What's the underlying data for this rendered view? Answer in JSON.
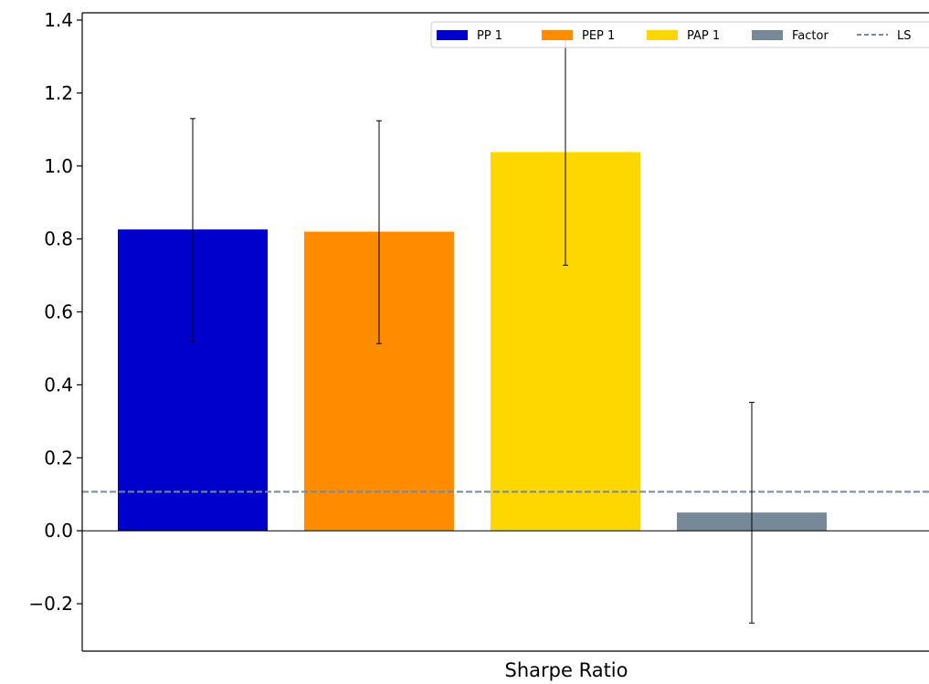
{
  "chart_data": {
    "type": "bar",
    "title": "",
    "xlabel": "Sharpe Ratio",
    "ylabel": "",
    "ylim": [
      -0.33,
      1.42
    ],
    "yticks": [
      -0.2,
      0.0,
      0.2,
      0.4,
      0.6,
      0.8,
      1.0,
      1.2,
      1.4
    ],
    "ytick_labels": [
      "−0.2",
      "0.0",
      "0.2",
      "0.4",
      "0.6",
      "0.8",
      "1.0",
      "1.2",
      "1.4"
    ],
    "grid": false,
    "legend_position": "top-right",
    "series": [
      {
        "name": "PP 1",
        "value": 0.826,
        "err_low": 0.518,
        "err_high": 1.13,
        "color": "#0000cd"
      },
      {
        "name": "PEP 1",
        "value": 0.82,
        "err_low": 0.513,
        "err_high": 1.124,
        "color": "#ff8c00"
      },
      {
        "name": "PAP 1",
        "value": 1.038,
        "err_low": 0.728,
        "err_high": 1.345,
        "color": "#ffd700"
      },
      {
        "name": "Factor",
        "value": 0.05,
        "err_low": -0.253,
        "err_high": 0.352,
        "color": "#778899"
      }
    ],
    "reference_lines": [
      {
        "name": "LS",
        "value": 0.107,
        "color": "#778899",
        "style": "dashed"
      }
    ]
  }
}
